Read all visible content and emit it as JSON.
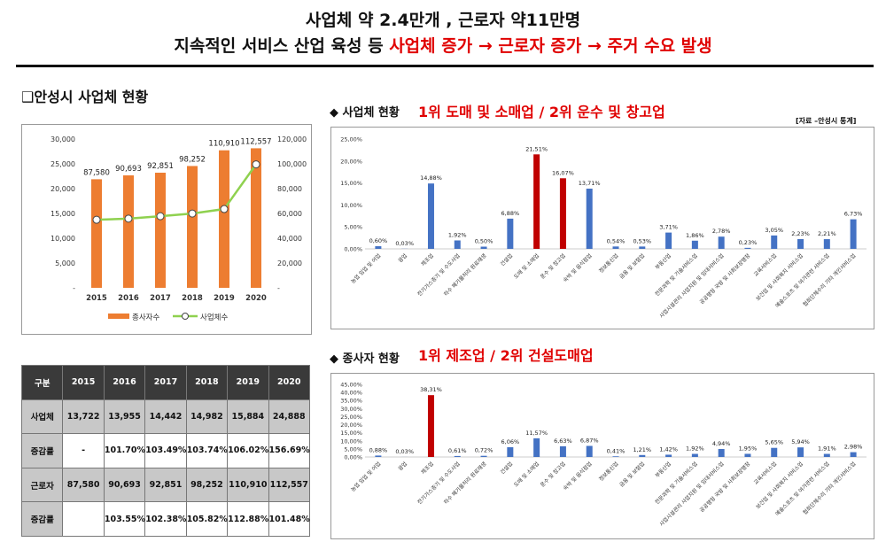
{
  "header": {
    "line1": "사업체 약 2.4만개 , 근로자 약11만명",
    "line2_black": "지속적인 서비스 산업 육성 등",
    "line2_red": "사업체 증가 → 근로자 증가 → 주거 수요 발생"
  },
  "left_section_title": "❑안성시 사업체 현황",
  "biz_section": {
    "marker": "◆",
    "label": "사업체 현황",
    "highlight": "1위 도매 및 소매업 / 2위 운수 및 창고업",
    "source": "[자료 –안성시 통계]"
  },
  "emp_section": {
    "marker": "◆",
    "label": "종사자 현황",
    "highlight": "1위 제조업 / 2위 건설도매업"
  },
  "chart_data": [
    {
      "type": "bar",
      "categories": [
        "2015",
        "2016",
        "2017",
        "2018",
        "2019",
        "2020"
      ],
      "series": [
        {
          "name": "종사자수",
          "kind": "bar",
          "axis": "right",
          "values": [
            87580,
            90693,
            92851,
            98252,
            110910,
            112557
          ],
          "labels": [
            "87,580",
            "90,693",
            "92,851",
            "98,252",
            "110,910",
            "112,557"
          ],
          "color": "#ed7d31"
        },
        {
          "name": "사업체수",
          "kind": "line",
          "axis": "left",
          "values": [
            13722,
            13955,
            14442,
            14982,
            15884,
            24888
          ],
          "color": "#8fd14f"
        }
      ],
      "left_axis": {
        "ticks": [
          "30,000",
          "25,000",
          "20,000",
          "15,000",
          "10,000",
          "5,000",
          "-"
        ],
        "ylim": [
          0,
          30000
        ]
      },
      "right_axis": {
        "ticks": [
          "120,000",
          "100,000",
          "80,000",
          "60,000",
          "40,000",
          "20,000",
          "-"
        ],
        "ylim": [
          0,
          120000
        ]
      }
    },
    {
      "type": "bar",
      "categories": [
        "농업 임업 및 어업",
        "광업",
        "제조업",
        "전기가스증기 및 수도사업",
        "하수 폐기물처리 원료재생",
        "건설업",
        "도매 및 소매업",
        "운수 및 창고업",
        "숙박 및 음식점업",
        "정보통신업",
        "금융 및 보험업",
        "부동산업",
        "전문과학 및 기술서비스업",
        "사업시설관리 사업지원 및 임대서비스업",
        "공공행정 국방 및 사회보장행정",
        "교육서비스업",
        "보건업 및 사회복지 서비스업",
        "예술스포츠 및 여가관련 서비스업",
        "협회단체수리 기타 개인서비스업"
      ],
      "values": [
        0.6,
        0.03,
        14.88,
        1.92,
        0.5,
        6.88,
        21.51,
        16.07,
        13.71,
        0.54,
        0.53,
        3.71,
        1.86,
        2.78,
        0.23,
        3.05,
        2.23,
        2.21,
        6.73
      ],
      "labels": [
        "0,60%",
        "0,03%",
        "14,88%",
        "1,92%",
        "0,50%",
        "6,88%",
        "21,51%",
        "16,07%",
        "13,71%",
        "0,54%",
        "0,53%",
        "3,71%",
        "1,86%",
        "2,78%",
        "0,23%",
        "3,05%",
        "2,23%",
        "2,21%",
        "6,73%"
      ],
      "highlight_index": [
        6,
        7
      ],
      "color": "#4472c4",
      "highlight_color": "#c00000",
      "y_ticks": [
        "25,00%",
        "20,00%",
        "15,00%",
        "10,00%",
        "5,00%",
        "0,00%"
      ],
      "ylim": [
        0,
        25
      ]
    },
    {
      "type": "bar",
      "categories": [
        "농업 임업 및 어업",
        "광업",
        "제조업",
        "전기가스증기 및 수도사업",
        "하수 폐기물처리 원료재생",
        "건설업",
        "도매 및 소매업",
        "운수 및 창고업",
        "숙박 및 음식점업",
        "정보통신업",
        "금융 및 보험업",
        "부동산업",
        "전문과학 및 기술서비스업",
        "사업시설관리 사업지원 및 임대서비스업",
        "공공행정 국방 및 사회보장행정",
        "교육서비스업",
        "보건업 및 사회복지 서비스업",
        "예술스포츠 및 여가관련 서비스업",
        "협회단체수리 기타 개인서비스업"
      ],
      "values": [
        0.88,
        0.03,
        38.31,
        0.61,
        0.72,
        6.06,
        11.57,
        6.63,
        6.87,
        0.41,
        1.21,
        1.42,
        1.92,
        4.94,
        1.95,
        5.65,
        5.94,
        1.91,
        2.98
      ],
      "labels": [
        "0,88%",
        "0,03%",
        "38,31%",
        "0,61%",
        "0,72%",
        "6,06%",
        "11,57%",
        "6,63%",
        "6,87%",
        "0,41%",
        "1,21%",
        "1,42%",
        "1,92%",
        "4,94%",
        "1,95%",
        "5,65%",
        "5,94%",
        "1,91%",
        "2,98%"
      ],
      "highlight_index": [
        2
      ],
      "color": "#4472c4",
      "highlight_color": "#c00000",
      "y_ticks": [
        "45,00%",
        "40,00%",
        "35,00%",
        "30,00%",
        "25,00%",
        "20,00%",
        "15,00%",
        "10,00%",
        "5,00%",
        "0,00%"
      ],
      "ylim": [
        0,
        45
      ]
    }
  ],
  "table": {
    "header": [
      "구분",
      "2015",
      "2016",
      "2017",
      "2018",
      "2019",
      "2020"
    ],
    "rows": [
      [
        "사업체",
        "13,722",
        "13,955",
        "14,442",
        "14,982",
        "15,884",
        "24,888"
      ],
      [
        "증감률",
        "-",
        "101.70%",
        "103.49%",
        "103.74%",
        "106.02%",
        "156.69%"
      ],
      [
        "근로자",
        "87,580",
        "90,693",
        "92,851",
        "98,252",
        "110,910",
        "112,557"
      ],
      [
        "증감률",
        "",
        "103.55%",
        "102.38%",
        "105.82%",
        "112.88%",
        "101.48%"
      ]
    ]
  }
}
